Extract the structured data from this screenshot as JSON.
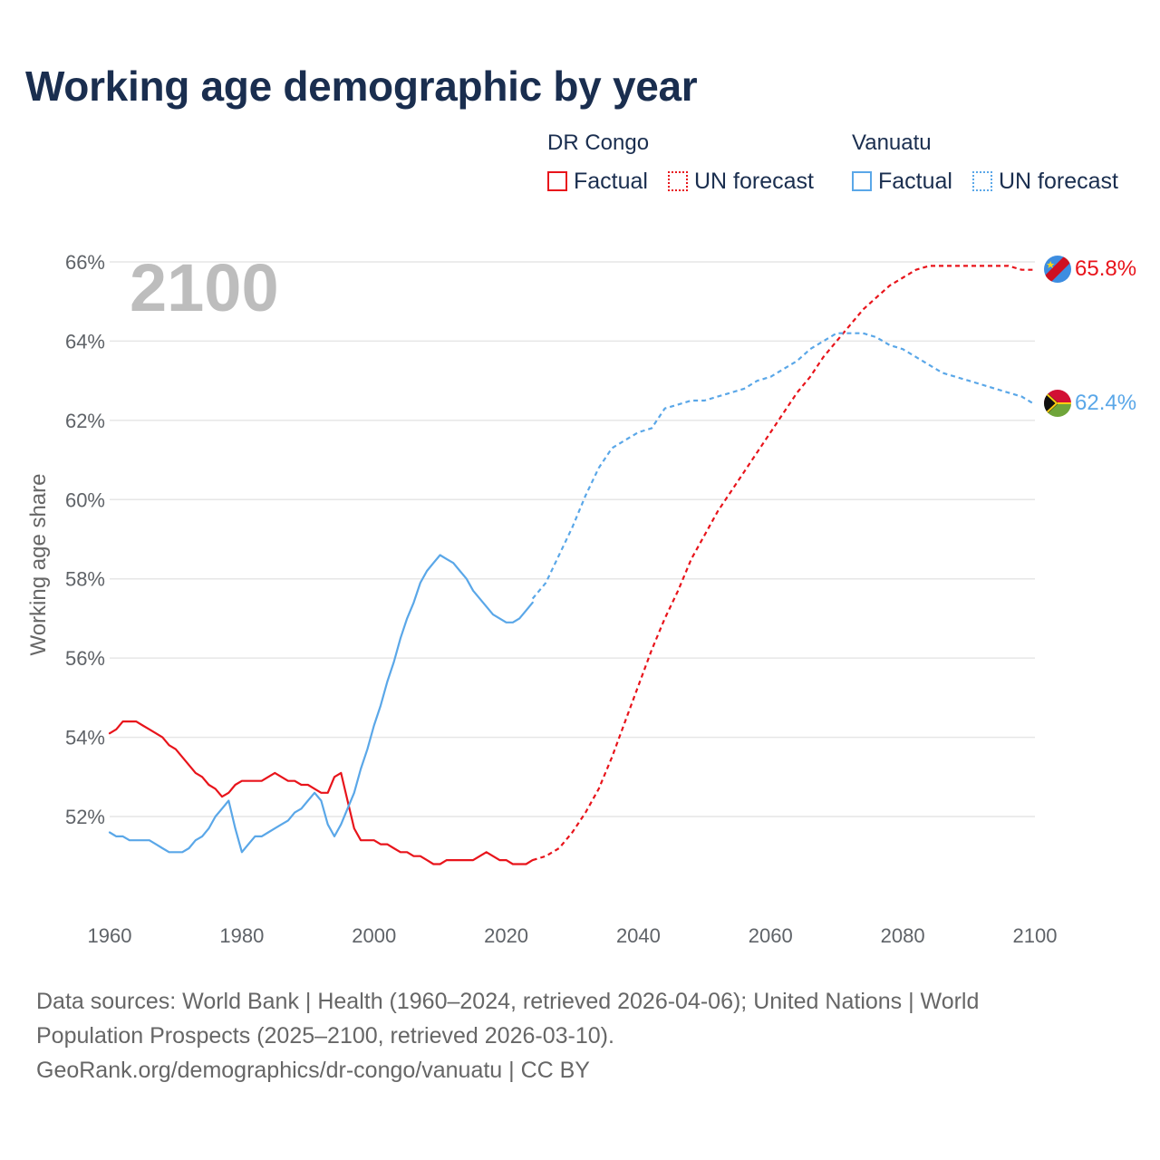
{
  "title": "Working age demographic by year",
  "legend": {
    "groups": [
      {
        "name": "DR Congo",
        "factual_label": "Factual",
        "forecast_label": "UN forecast",
        "color": "#e8141b"
      },
      {
        "name": "Vanuatu",
        "factual_label": "Factual",
        "forecast_label": "UN forecast",
        "color": "#5aa7e8"
      }
    ]
  },
  "footer": {
    "line1": "Data sources: World Bank | Health (1960–2024, retrieved 2026-04-06); United Nations | World",
    "line2": "Population Prospects (2025–2100, retrieved 2026-03-10).",
    "line3": "GeoRank.org/demographics/dr-congo/vanuatu | CC BY"
  },
  "chart_data": {
    "type": "line",
    "title": "Working age demographic by year",
    "year_label": "2100",
    "xlabel": "",
    "ylabel": "Working age share",
    "xlim": [
      1960,
      2100
    ],
    "ylim": [
      50,
      66.5
    ],
    "x_ticks": [
      1960,
      1980,
      2000,
      2020,
      2040,
      2060,
      2080,
      2100
    ],
    "x_tick_labels": [
      "1960",
      "1980",
      "2000",
      "2020",
      "2040",
      "2060",
      "2080",
      "2100"
    ],
    "y_ticks": [
      52,
      54,
      56,
      58,
      60,
      62,
      64,
      66
    ],
    "y_tick_labels": [
      "52%",
      "54%",
      "56%",
      "58%",
      "60%",
      "62%",
      "64%",
      "66%"
    ],
    "grid": true,
    "series": [
      {
        "name": "DR Congo",
        "style": "factual",
        "color": "#e8141b",
        "x": [
          1960,
          1961,
          1962,
          1963,
          1964,
          1965,
          1966,
          1967,
          1968,
          1969,
          1970,
          1971,
          1972,
          1973,
          1974,
          1975,
          1976,
          1977,
          1978,
          1979,
          1980,
          1981,
          1982,
          1983,
          1984,
          1985,
          1986,
          1987,
          1988,
          1989,
          1990,
          1991,
          1992,
          1993,
          1994,
          1995,
          1996,
          1997,
          1998,
          1999,
          2000,
          2001,
          2002,
          2003,
          2004,
          2005,
          2006,
          2007,
          2008,
          2009,
          2010,
          2011,
          2012,
          2013,
          2014,
          2015,
          2016,
          2017,
          2018,
          2019,
          2020,
          2021,
          2022,
          2023,
          2024
        ],
        "values": [
          54.1,
          54.2,
          54.4,
          54.4,
          54.4,
          54.3,
          54.2,
          54.1,
          54.0,
          53.8,
          53.7,
          53.5,
          53.3,
          53.1,
          53.0,
          52.8,
          52.7,
          52.5,
          52.6,
          52.8,
          52.9,
          52.9,
          52.9,
          52.9,
          53.0,
          53.1,
          53.0,
          52.9,
          52.9,
          52.8,
          52.8,
          52.7,
          52.6,
          52.6,
          53.0,
          53.1,
          52.4,
          51.7,
          51.4,
          51.4,
          51.4,
          51.3,
          51.3,
          51.2,
          51.1,
          51.1,
          51.0,
          51.0,
          50.9,
          50.8,
          50.8,
          50.9,
          50.9,
          50.9,
          50.9,
          50.9,
          51.0,
          51.1,
          51.0,
          50.9,
          50.9,
          50.8,
          50.8,
          50.8,
          50.9
        ]
      },
      {
        "name": "DR Congo",
        "style": "forecast",
        "color": "#e8141b",
        "x": [
          2024,
          2026,
          2028,
          2030,
          2032,
          2034,
          2036,
          2038,
          2040,
          2042,
          2044,
          2046,
          2048,
          2050,
          2052,
          2054,
          2056,
          2058,
          2060,
          2062,
          2064,
          2066,
          2068,
          2070,
          2072,
          2074,
          2076,
          2078,
          2080,
          2082,
          2084,
          2086,
          2088,
          2090,
          2092,
          2094,
          2096,
          2098,
          2100
        ],
        "values": [
          50.9,
          51.0,
          51.2,
          51.6,
          52.1,
          52.7,
          53.5,
          54.4,
          55.3,
          56.2,
          57.0,
          57.7,
          58.5,
          59.1,
          59.7,
          60.2,
          60.7,
          61.2,
          61.7,
          62.2,
          62.7,
          63.1,
          63.6,
          64.0,
          64.4,
          64.8,
          65.1,
          65.4,
          65.6,
          65.8,
          65.9,
          65.9,
          65.9,
          65.9,
          65.9,
          65.9,
          65.9,
          65.8,
          65.8
        ]
      },
      {
        "name": "Vanuatu",
        "style": "factual",
        "color": "#5aa7e8",
        "x": [
          1960,
          1961,
          1962,
          1963,
          1964,
          1965,
          1966,
          1967,
          1968,
          1969,
          1970,
          1971,
          1972,
          1973,
          1974,
          1975,
          1976,
          1977,
          1978,
          1979,
          1980,
          1981,
          1982,
          1983,
          1984,
          1985,
          1986,
          1987,
          1988,
          1989,
          1990,
          1991,
          1992,
          1993,
          1994,
          1995,
          1996,
          1997,
          1998,
          1999,
          2000,
          2001,
          2002,
          2003,
          2004,
          2005,
          2006,
          2007,
          2008,
          2009,
          2010,
          2011,
          2012,
          2013,
          2014,
          2015,
          2016,
          2017,
          2018,
          2019,
          2020,
          2021,
          2022,
          2023,
          2024
        ],
        "values": [
          51.6,
          51.5,
          51.5,
          51.4,
          51.4,
          51.4,
          51.4,
          51.3,
          51.2,
          51.1,
          51.1,
          51.1,
          51.2,
          51.4,
          51.5,
          51.7,
          52.0,
          52.2,
          52.4,
          51.7,
          51.1,
          51.3,
          51.5,
          51.5,
          51.6,
          51.7,
          51.8,
          51.9,
          52.1,
          52.2,
          52.4,
          52.6,
          52.4,
          51.8,
          51.5,
          51.8,
          52.2,
          52.6,
          53.2,
          53.7,
          54.3,
          54.8,
          55.4,
          55.9,
          56.5,
          57.0,
          57.4,
          57.9,
          58.2,
          58.4,
          58.6,
          58.5,
          58.4,
          58.2,
          58.0,
          57.7,
          57.5,
          57.3,
          57.1,
          57.0,
          56.9,
          56.9,
          57.0,
          57.2,
          57.4
        ]
      },
      {
        "name": "Vanuatu",
        "style": "forecast",
        "color": "#5aa7e8",
        "x": [
          2024,
          2026,
          2028,
          2030,
          2032,
          2034,
          2036,
          2038,
          2040,
          2042,
          2044,
          2046,
          2048,
          2050,
          2052,
          2054,
          2056,
          2058,
          2060,
          2062,
          2064,
          2066,
          2068,
          2070,
          2072,
          2074,
          2076,
          2078,
          2080,
          2082,
          2084,
          2086,
          2088,
          2090,
          2092,
          2094,
          2096,
          2098,
          2100
        ],
        "values": [
          57.5,
          57.9,
          58.6,
          59.3,
          60.1,
          60.8,
          61.3,
          61.5,
          61.7,
          61.8,
          62.3,
          62.4,
          62.5,
          62.5,
          62.6,
          62.7,
          62.8,
          63.0,
          63.1,
          63.3,
          63.5,
          63.8,
          64.0,
          64.2,
          64.2,
          64.2,
          64.1,
          63.9,
          63.8,
          63.6,
          63.4,
          63.2,
          63.1,
          63.0,
          62.9,
          62.8,
          62.7,
          62.6,
          62.4
        ]
      }
    ],
    "end_labels": [
      {
        "name": "DR Congo",
        "text": "65.8%",
        "value": 65.8,
        "color": "#e8141b"
      },
      {
        "name": "Vanuatu",
        "text": "62.4%",
        "value": 62.4,
        "color": "#5aa7e8"
      }
    ]
  }
}
